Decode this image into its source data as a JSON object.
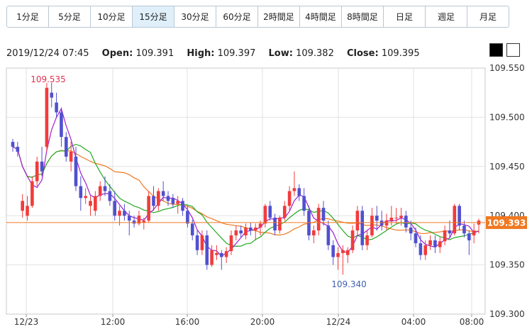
{
  "tabs": [
    {
      "label": "1分足",
      "active": false
    },
    {
      "label": "5分足",
      "active": false
    },
    {
      "label": "10分足",
      "active": false
    },
    {
      "label": "15分足",
      "active": true
    },
    {
      "label": "30分足",
      "active": false
    },
    {
      "label": "60分足",
      "active": false
    },
    {
      "label": "2時間足",
      "active": false
    },
    {
      "label": "4時間足",
      "active": false
    },
    {
      "label": "8時間足",
      "active": false
    },
    {
      "label": "日足",
      "active": false
    },
    {
      "label": "週足",
      "active": false
    },
    {
      "label": "月足",
      "active": false
    }
  ],
  "ohlc": {
    "datetime": "2019/12/24 07:45",
    "open_label": "Open:",
    "open": "109.391",
    "high_label": "High:",
    "high": "109.397",
    "low_label": "Low:",
    "low": "109.382",
    "close_label": "Close:",
    "close": "109.395"
  },
  "theme_buttons": {
    "dark": "#000000",
    "light": "#ffffff"
  },
  "colors": {
    "up": "#f23b3b",
    "down": "#5050d0",
    "ma_short": "#a020d0",
    "ma_mid": "#22aa22",
    "ma_long": "#f07820",
    "price_line": "#f07820"
  },
  "chart_data": {
    "type": "candlestick",
    "y_ticks": [
      "109.550",
      "109.500",
      "109.450",
      "109.400",
      "109.350",
      "109.300"
    ],
    "ylim": [
      109.3,
      109.55
    ],
    "x_ticks": [
      "12/23",
      "12:00",
      "16:00",
      "20:00",
      "12/24",
      "04:00",
      "08:00"
    ],
    "current_price": "109.393",
    "max_label": "109.535",
    "min_label": "109.340",
    "candles": [
      [
        109.475,
        109.478,
        109.465,
        109.47
      ],
      [
        109.47,
        109.475,
        109.46,
        109.465
      ],
      [
        109.405,
        109.422,
        109.398,
        109.415
      ],
      [
        109.4,
        109.42,
        109.395,
        109.41
      ],
      [
        109.41,
        109.44,
        109.408,
        109.435
      ],
      [
        109.435,
        109.46,
        109.43,
        109.455
      ],
      [
        109.455,
        109.47,
        109.44,
        109.445
      ],
      [
        109.47,
        109.535,
        109.465,
        109.53
      ],
      [
        109.525,
        109.535,
        109.51,
        109.52
      ],
      [
        109.515,
        109.525,
        109.5,
        109.505
      ],
      [
        109.505,
        109.51,
        109.47,
        109.48
      ],
      [
        109.48,
        109.485,
        109.455,
        109.46
      ],
      [
        109.455,
        109.475,
        109.445,
        109.465
      ],
      [
        109.46,
        109.47,
        109.425,
        109.43
      ],
      [
        109.43,
        109.44,
        109.405,
        109.418
      ],
      [
        109.418,
        109.428,
        109.412,
        109.42
      ],
      [
        109.41,
        109.42,
        109.4,
        109.415
      ],
      [
        109.405,
        109.425,
        109.4,
        109.42
      ],
      [
        109.42,
        109.435,
        109.415,
        109.43
      ],
      [
        109.43,
        109.44,
        109.42,
        109.425
      ],
      [
        109.425,
        109.432,
        109.41,
        109.415
      ],
      [
        109.415,
        109.425,
        109.395,
        109.4
      ],
      [
        109.4,
        109.41,
        109.39,
        109.405
      ],
      [
        109.405,
        109.412,
        109.395,
        109.4
      ],
      [
        109.4,
        109.405,
        109.38,
        109.395
      ],
      [
        109.395,
        109.4,
        109.388,
        109.392
      ],
      [
        109.392,
        109.405,
        109.39,
        109.4
      ],
      [
        109.393,
        109.398,
        109.386,
        109.395
      ],
      [
        109.395,
        109.425,
        109.393,
        109.42
      ],
      [
        109.42,
        109.43,
        109.405,
        109.41
      ],
      [
        109.41,
        109.428,
        109.405,
        109.425
      ],
      [
        109.425,
        109.435,
        109.415,
        109.42
      ],
      [
        109.42,
        109.425,
        109.41,
        109.415
      ],
      [
        109.418,
        109.422,
        109.408,
        109.412
      ],
      [
        109.412,
        109.42,
        109.402,
        109.415
      ],
      [
        109.415,
        109.418,
        109.4,
        109.405
      ],
      [
        109.405,
        109.41,
        109.388,
        109.392
      ],
      [
        109.392,
        109.396,
        109.375,
        109.38
      ],
      [
        109.38,
        109.385,
        109.36,
        109.365
      ],
      [
        109.365,
        109.385,
        109.36,
        109.38
      ],
      [
        109.38,
        109.385,
        109.345,
        109.35
      ],
      [
        109.35,
        109.37,
        109.348,
        109.365
      ],
      [
        109.36,
        109.37,
        109.355,
        109.362
      ],
      [
        109.362,
        109.365,
        109.345,
        109.358
      ],
      [
        109.358,
        109.368,
        109.352,
        109.364
      ],
      [
        109.364,
        109.385,
        109.36,
        109.38
      ],
      [
        109.38,
        109.39,
        109.375,
        109.385
      ],
      [
        109.385,
        109.39,
        109.378,
        109.382
      ],
      [
        109.38,
        109.392,
        109.376,
        109.388
      ],
      [
        109.388,
        109.393,
        109.38,
        109.385
      ],
      [
        109.385,
        109.392,
        109.375,
        109.388
      ],
      [
        109.388,
        109.395,
        109.38,
        109.392
      ],
      [
        109.392,
        109.412,
        109.388,
        109.41
      ],
      [
        109.41,
        109.415,
        109.395,
        109.398
      ],
      [
        109.398,
        109.402,
        109.38,
        109.385
      ],
      [
        109.385,
        109.4,
        109.382,
        109.398
      ],
      [
        109.398,
        109.415,
        109.395,
        109.41
      ],
      [
        109.41,
        109.43,
        109.405,
        109.425
      ],
      [
        109.425,
        109.445,
        109.42,
        109.428
      ],
      [
        109.428,
        109.432,
        109.415,
        109.42
      ],
      [
        109.42,
        109.428,
        109.4,
        109.405
      ],
      [
        109.405,
        109.41,
        109.375,
        109.38
      ],
      [
        109.38,
        109.39,
        109.372,
        109.385
      ],
      [
        109.385,
        109.412,
        109.38,
        109.408
      ],
      [
        109.408,
        109.415,
        109.39,
        109.395
      ],
      [
        109.39,
        109.395,
        109.365,
        109.37
      ],
      [
        109.37,
        109.375,
        109.35,
        109.358
      ],
      [
        109.358,
        109.368,
        109.345,
        109.362
      ],
      [
        109.362,
        109.37,
        109.34,
        109.365
      ],
      [
        109.36,
        109.368,
        109.352,
        109.365
      ],
      [
        109.365,
        109.39,
        109.362,
        109.385
      ],
      [
        109.385,
        109.41,
        109.38,
        109.405
      ],
      [
        109.405,
        109.41,
        109.365,
        109.37
      ],
      [
        109.37,
        109.385,
        109.365,
        109.38
      ],
      [
        109.38,
        109.408,
        109.378,
        109.4
      ],
      [
        109.4,
        109.41,
        109.385,
        109.395
      ],
      [
        109.395,
        109.405,
        109.385,
        109.39
      ],
      [
        109.39,
        109.402,
        109.385,
        109.395
      ],
      [
        109.395,
        109.41,
        109.39,
        109.398
      ],
      [
        109.398,
        109.408,
        109.392,
        109.398
      ],
      [
        109.398,
        109.408,
        109.39,
        109.4
      ],
      [
        109.4,
        109.405,
        109.383,
        109.388
      ],
      [
        109.388,
        109.395,
        109.375,
        109.382
      ],
      [
        109.382,
        109.388,
        109.368,
        109.372
      ],
      [
        109.372,
        109.38,
        109.355,
        109.36
      ],
      [
        109.36,
        109.375,
        109.355,
        109.37
      ],
      [
        109.37,
        109.38,
        109.365,
        109.375
      ],
      [
        109.375,
        109.38,
        109.362,
        109.368
      ],
      [
        109.368,
        109.378,
        109.362,
        109.374
      ],
      [
        109.374,
        109.39,
        109.37,
        109.385
      ],
      [
        109.385,
        109.395,
        109.378,
        109.382
      ],
      [
        109.382,
        109.412,
        109.38,
        109.41
      ],
      [
        109.41,
        109.412,
        109.385,
        109.39
      ],
      [
        109.39,
        109.395,
        109.378,
        109.382
      ],
      [
        109.382,
        109.385,
        109.36,
        109.375
      ],
      [
        109.38,
        109.392,
        109.372,
        109.385
      ],
      [
        109.391,
        109.397,
        109.382,
        109.395
      ]
    ]
  }
}
